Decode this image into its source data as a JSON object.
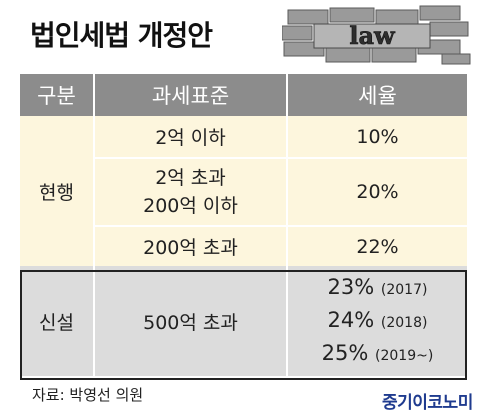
{
  "title": "법인세법 개정안",
  "illustration": {
    "wall_text": "law"
  },
  "table": {
    "headers": [
      "구분",
      "과세표준",
      "세율"
    ],
    "current": {
      "category": "현행",
      "rows": [
        {
          "standard": [
            "2억 이하"
          ],
          "rate": "10%"
        },
        {
          "standard": [
            "2억 초과",
            "200억 이하"
          ],
          "rate": "20%"
        },
        {
          "standard": [
            "200억 초과"
          ],
          "rate": "22%"
        }
      ]
    },
    "new": {
      "category": "신설",
      "standard": "500억 초과",
      "rates": [
        {
          "rate": "23%",
          "year": "(2017)"
        },
        {
          "rate": "24%",
          "year": "(2018)"
        },
        {
          "rate": "25%",
          "year": "(2019~)"
        }
      ]
    }
  },
  "source": "자료: 박영선 의원",
  "publisher": "중기이코노미",
  "colors": {
    "header_bg": "#8c8c8c",
    "current_bg": "#fdf6dd",
    "new_bg": "#dcdcdc",
    "logo": "#1f3b8f"
  }
}
